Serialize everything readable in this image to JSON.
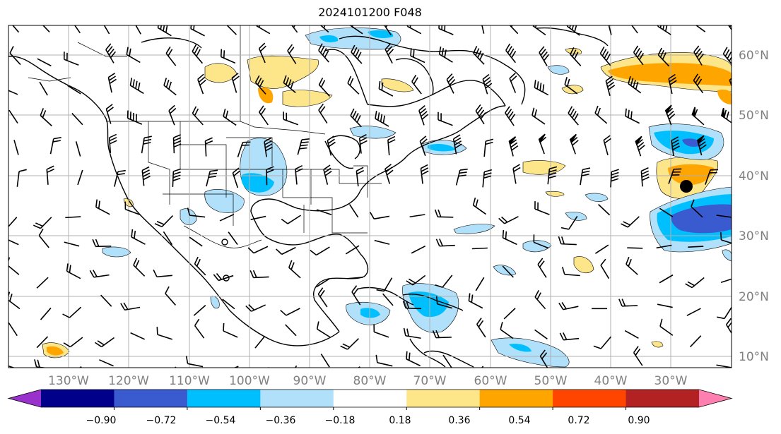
{
  "title": "2024101200 F048",
  "map": {
    "lat_labels": [
      "60°N",
      "50°N",
      "40°N",
      "30°N",
      "20°N",
      "10°N"
    ],
    "lon_labels": [
      "130°W",
      "120°W",
      "110°W",
      "100°W",
      "90°W",
      "80°W",
      "70°W",
      "60°W",
      "50°W",
      "40°W",
      "30°W"
    ]
  },
  "colorbar": {
    "labels": [
      "−0.90",
      "−0.72",
      "−0.54",
      "−0.36",
      "−0.18",
      "0.18",
      "0.36",
      "0.54",
      "0.72",
      "0.90"
    ],
    "colors": [
      "#9932cc",
      "#00008b",
      "#3a5ad0",
      "#00bfff",
      "#b0e0fa",
      "#ffffff",
      "#fde58a",
      "#ffa500",
      "#ff4500",
      "#b22222",
      "#ff80b0"
    ]
  },
  "fill_colors": {
    "neg_light": "#b0e0fa",
    "neg_mid": "#00bfff",
    "neg_dark": "#3a5ad0",
    "pos_light": "#fde58a",
    "pos_mid": "#ffa500"
  }
}
